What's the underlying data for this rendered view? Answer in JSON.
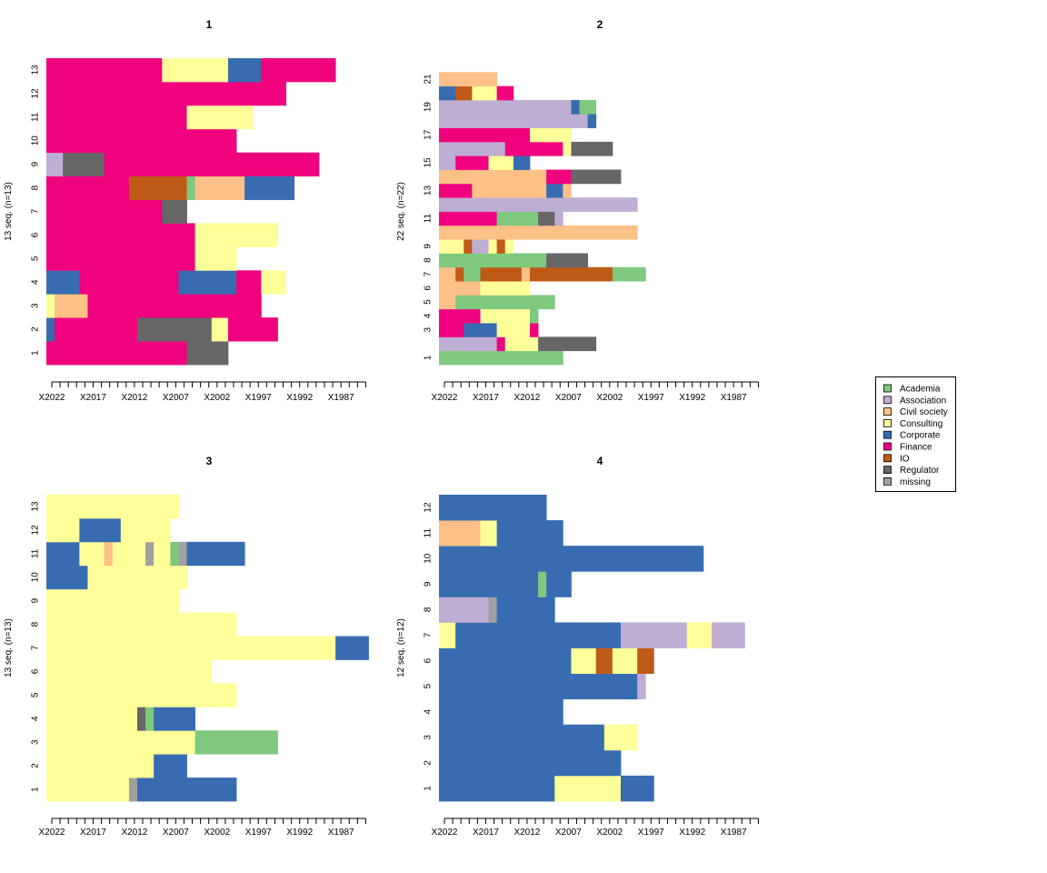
{
  "states": [
    "Academia",
    "Association",
    "Civil society",
    "Consulting",
    "Corporate",
    "Finance",
    "IO",
    "Regulator",
    "missing"
  ],
  "colors": {
    "Academia": "#7fc97f",
    "Association": "#beaed4",
    "Civil society": "#fdc086",
    "Consulting": "#ffff99",
    "Corporate": "#386cb0",
    "Finance": "#f0027f",
    "IO": "#bf5b17",
    "Regulator": "#666666",
    "missing": "#a0a0a0"
  },
  "x_tick_labels": [
    "X2022",
    "X2017",
    "X2012",
    "X2007",
    "X2002",
    "X1997",
    "X1992",
    "X1987"
  ],
  "chart_data": [
    {
      "type": "sequence-index",
      "title": "1",
      "ylabel": "13 seq. (n=13)",
      "ytick_labels": [
        "1",
        "2",
        "3",
        "4",
        "5",
        "6",
        "7",
        "8",
        "9",
        "10",
        "11",
        "12",
        "13"
      ],
      "sequences": [
        [
          [
            "Finance",
            17
          ],
          [
            "Regulator",
            5
          ]
        ],
        [
          [
            "Corporate",
            1
          ],
          [
            "Finance",
            10
          ],
          [
            "Regulator",
            9
          ],
          [
            "Consulting",
            2
          ],
          [
            "Finance",
            6
          ]
        ],
        [
          [
            "Consulting",
            1
          ],
          [
            "Civil society",
            4
          ],
          [
            "Finance",
            21
          ]
        ],
        [
          [
            "Corporate",
            4
          ],
          [
            "Finance",
            12
          ],
          [
            "Corporate",
            7
          ],
          [
            "Finance",
            3
          ],
          [
            "Consulting",
            3
          ]
        ],
        [
          [
            "Finance",
            18
          ],
          [
            "Consulting",
            5
          ]
        ],
        [
          [
            "Finance",
            18
          ],
          [
            "Consulting",
            10
          ]
        ],
        [
          [
            "Finance",
            14
          ],
          [
            "Regulator",
            3
          ]
        ],
        [
          [
            "Finance",
            10
          ],
          [
            "IO",
            7
          ],
          [
            "Academia",
            1
          ],
          [
            "Civil society",
            6
          ],
          [
            "Corporate",
            6
          ]
        ],
        [
          [
            "Association",
            2
          ],
          [
            "Regulator",
            5
          ],
          [
            "Finance",
            26
          ]
        ],
        [
          [
            "Finance",
            23
          ]
        ],
        [
          [
            "Finance",
            17
          ],
          [
            "Consulting",
            8
          ]
        ],
        [
          [
            "Finance",
            29
          ]
        ],
        [
          [
            "Finance",
            14
          ],
          [
            "Consulting",
            8
          ],
          [
            "Corporate",
            4
          ],
          [
            "Finance",
            9
          ]
        ]
      ]
    },
    {
      "type": "sequence-index",
      "title": "2",
      "ylabel": "22 seq. (n=22)",
      "ytick_labels": [
        "1",
        "",
        "3",
        "4",
        "5",
        "6",
        "7",
        "8",
        "9",
        "",
        "11",
        "",
        "13",
        "",
        "15",
        "",
        "17",
        "",
        "19",
        "",
        "21",
        ""
      ],
      "sequences": [
        [
          [
            "Academia",
            15
          ]
        ],
        [
          [
            "Association",
            7
          ],
          [
            "Finance",
            1
          ],
          [
            "Consulting",
            4
          ],
          [
            "Regulator",
            7
          ]
        ],
        [
          [
            "Finance",
            3
          ],
          [
            "Corporate",
            4
          ],
          [
            "Consulting",
            4
          ],
          [
            "Finance",
            1
          ]
        ],
        [
          [
            "Finance",
            5
          ],
          [
            "Consulting",
            6
          ],
          [
            "Academia",
            1
          ]
        ],
        [
          [
            "Civil society",
            2
          ],
          [
            "Academia",
            12
          ]
        ],
        [
          [
            "Civil society",
            5
          ],
          [
            "Consulting",
            6
          ]
        ],
        [
          [
            "Civil society",
            2
          ],
          [
            "IO",
            1
          ],
          [
            "Academia",
            2
          ],
          [
            "IO",
            5
          ],
          [
            "Civil society",
            1
          ],
          [
            "IO",
            10
          ],
          [
            "Academia",
            4
          ]
        ],
        [
          [
            "Academia",
            13
          ],
          [
            "Regulator",
            5
          ]
        ],
        [
          [
            "Consulting",
            3
          ],
          [
            "IO",
            1
          ],
          [
            "Association",
            2
          ],
          [
            "Consulting",
            1
          ],
          [
            "IO",
            1
          ],
          [
            "Consulting",
            1
          ]
        ],
        [
          [
            "Civil society",
            24
          ]
        ],
        [
          [
            "Finance",
            7
          ],
          [
            "Academia",
            5
          ],
          [
            "Regulator",
            2
          ],
          [
            "Association",
            1
          ]
        ],
        [
          [
            "Association",
            24
          ]
        ],
        [
          [
            "Finance",
            4
          ],
          [
            "Civil society",
            9
          ],
          [
            "Corporate",
            2
          ],
          [
            "Civil society",
            1
          ]
        ],
        [
          [
            "Civil society",
            13
          ],
          [
            "Finance",
            3
          ],
          [
            "Regulator",
            6
          ]
        ],
        [
          [
            "Association",
            2
          ],
          [
            "Finance",
            4
          ],
          [
            "Consulting",
            3
          ],
          [
            "Corporate",
            2
          ]
        ],
        [
          [
            "Association",
            8
          ],
          [
            "Finance",
            7
          ],
          [
            "Consulting",
            1
          ],
          [
            "Regulator",
            5
          ]
        ],
        [
          [
            "Finance",
            11
          ],
          [
            "Consulting",
            5
          ]
        ],
        [
          [
            "Association",
            18
          ],
          [
            "Corporate",
            1
          ]
        ],
        [
          [
            "Association",
            16
          ],
          [
            "Corporate",
            1
          ],
          [
            "Academia",
            2
          ]
        ],
        [
          [
            "Corporate",
            2
          ],
          [
            "IO",
            2
          ],
          [
            "Consulting",
            3
          ],
          [
            "Finance",
            2
          ]
        ],
        [
          [
            "Civil society",
            7
          ]
        ],
        []
      ]
    },
    {
      "type": "sequence-index",
      "title": "3",
      "ylabel": "13 seq. (n=13)",
      "ytick_labels": [
        "1",
        "2",
        "3",
        "4",
        "5",
        "6",
        "7",
        "8",
        "9",
        "10",
        "11",
        "12",
        "13"
      ],
      "sequences": [
        [
          [
            "Consulting",
            10
          ],
          [
            "missing",
            1
          ],
          [
            "Corporate",
            12
          ]
        ],
        [
          [
            "Consulting",
            13
          ],
          [
            "Corporate",
            4
          ]
        ],
        [
          [
            "Consulting",
            18
          ],
          [
            "Academia",
            10
          ]
        ],
        [
          [
            "Consulting",
            11
          ],
          [
            "Regulator",
            1
          ],
          [
            "Academia",
            1
          ],
          [
            "Corporate",
            5
          ]
        ],
        [
          [
            "Consulting",
            23
          ]
        ],
        [
          [
            "Consulting",
            20
          ]
        ],
        [
          [
            "Consulting",
            35
          ],
          [
            "Corporate",
            4
          ]
        ],
        [
          [
            "Consulting",
            23
          ]
        ],
        [
          [
            "Consulting",
            16
          ]
        ],
        [
          [
            "Corporate",
            5
          ],
          [
            "Consulting",
            12
          ]
        ],
        [
          [
            "Corporate",
            4
          ],
          [
            "Consulting",
            3
          ],
          [
            "Civil society",
            1
          ],
          [
            "Consulting",
            4
          ],
          [
            "missing",
            1
          ],
          [
            "Consulting",
            2
          ],
          [
            "Academia",
            1
          ],
          [
            "missing",
            1
          ],
          [
            "Corporate",
            7
          ]
        ],
        [
          [
            "Consulting",
            4
          ],
          [
            "Corporate",
            5
          ],
          [
            "Consulting",
            6
          ]
        ],
        [
          [
            "Consulting",
            16
          ]
        ]
      ]
    },
    {
      "type": "sequence-index",
      "title": "4",
      "ylabel": "12 seq. (n=12)",
      "ytick_labels": [
        "1",
        "2",
        "3",
        "4",
        "5",
        "6",
        "7",
        "8",
        "9",
        "10",
        "11",
        "12"
      ],
      "sequences": [
        [
          [
            "Corporate",
            14
          ],
          [
            "Consulting",
            8
          ],
          [
            "Corporate",
            4
          ]
        ],
        [
          [
            "Corporate",
            22
          ]
        ],
        [
          [
            "Corporate",
            20
          ],
          [
            "Consulting",
            4
          ]
        ],
        [
          [
            "Corporate",
            15
          ]
        ],
        [
          [
            "Corporate",
            24
          ],
          [
            "Association",
            1
          ]
        ],
        [
          [
            "Corporate",
            16
          ],
          [
            "Consulting",
            3
          ],
          [
            "IO",
            2
          ],
          [
            "Consulting",
            3
          ],
          [
            "IO",
            2
          ]
        ],
        [
          [
            "Consulting",
            2
          ],
          [
            "Corporate",
            20
          ],
          [
            "Association",
            8
          ],
          [
            "Consulting",
            3
          ],
          [
            "Association",
            4
          ]
        ],
        [
          [
            "Association",
            6
          ],
          [
            "missing",
            1
          ],
          [
            "Corporate",
            7
          ]
        ],
        [
          [
            "Corporate",
            12
          ],
          [
            "Academia",
            1
          ],
          [
            "Corporate",
            3
          ]
        ],
        [
          [
            "Corporate",
            32
          ]
        ],
        [
          [
            "Civil society",
            5
          ],
          [
            "Consulting",
            2
          ],
          [
            "Corporate",
            8
          ]
        ],
        [
          [
            "Corporate",
            13
          ]
        ]
      ]
    }
  ]
}
